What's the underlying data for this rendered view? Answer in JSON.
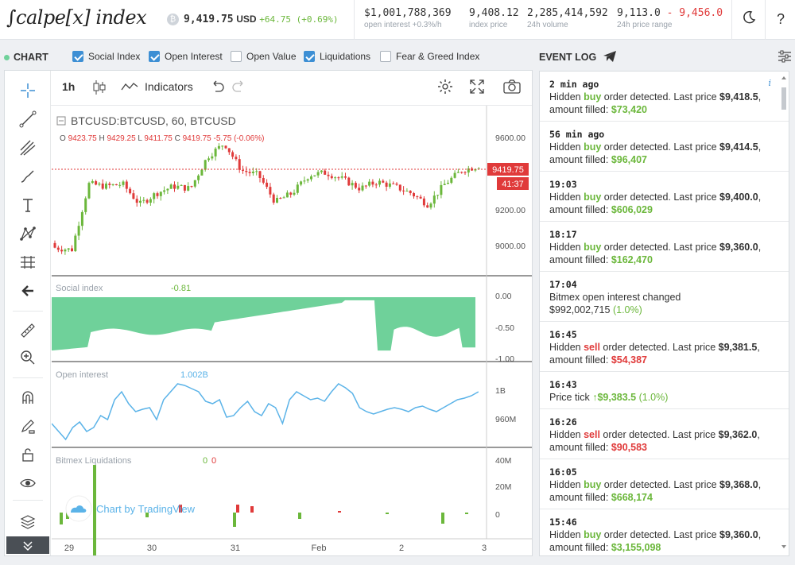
{
  "header": {
    "logo": "∫calpe[x] index",
    "btc_symbol": "₿",
    "price": "9,419.75",
    "currency": "USD",
    "change": "+64.75 (+0.69%)",
    "stats": [
      {
        "value": "$1,001,788,369",
        "label": "open interest",
        "sub": "+0.3%/h"
      },
      {
        "value": "9,408.12",
        "label": "index price"
      },
      {
        "value": "2,285,414,592",
        "label": "24h volume"
      },
      {
        "value_low": "9,113.0",
        "value_sep": " - ",
        "value_high": "9,456.0",
        "label": "24h price range"
      }
    ],
    "theme_icon": "moon-icon",
    "help_label": "?"
  },
  "chart_bar": {
    "title": "CHART",
    "toggles": [
      {
        "label": "Social Index",
        "checked": true
      },
      {
        "label": "Open Interest",
        "checked": true
      },
      {
        "label": "Open Value",
        "checked": false
      },
      {
        "label": "Liquidations",
        "checked": true
      },
      {
        "label": "Fear & Greed Index",
        "checked": false
      }
    ]
  },
  "chart_toolbar": {
    "interval": "1h",
    "indicators_label": "Indicators"
  },
  "chart": {
    "symbol": "BTCUSD:BTCUSD, 60, BTCUSD",
    "ohlc": {
      "o": "9423.75",
      "h": "9429.25",
      "l": "9411.75",
      "c": "9419.75",
      "chg": "-5.75 (-0.06%)"
    },
    "last_price_tag": "9419.75",
    "countdown_tag": "41:37",
    "price_ticks": [
      "9600.00",
      "9400.00",
      "9200.00",
      "9000.00"
    ],
    "social_label": "Social index",
    "social_value": "-0.81",
    "social_ticks": [
      "0.00",
      "-0.50",
      "-1.00"
    ],
    "oi_label": "Open interest",
    "oi_value": "1.002B",
    "oi_ticks": [
      "1B",
      "960M"
    ],
    "liq_label": "Bitmex Liquidations",
    "liq_values": [
      "0",
      "0"
    ],
    "liq_ticks": [
      "40M",
      "20M",
      "0"
    ],
    "x_ticks": [
      "29",
      "30",
      "31",
      "Feb",
      "2",
      "3"
    ],
    "watermark": "Chart by TradingView",
    "colors": {
      "up": "#6bb73b",
      "down": "#e03a3a",
      "social": "#6fd19a",
      "oi": "#5bb3e8"
    }
  },
  "chart_data": {
    "type": "candlestick",
    "x": [
      "29",
      "30",
      "31",
      "Feb",
      "2",
      "3"
    ],
    "close_approx": [
      9060,
      9050,
      9340,
      9330,
      9340,
      9250,
      9300,
      9330,
      9320,
      9460,
      9520,
      9400,
      9380,
      9260,
      9300,
      9380,
      9390,
      9360,
      9320,
      9350,
      9330,
      9300,
      9250,
      9340,
      9400,
      9420
    ],
    "last_price": 9419.75,
    "ylim": [
      8950,
      9650
    ]
  },
  "event_log": {
    "title": "EVENT LOG",
    "events": [
      {
        "time": "2 min ago",
        "pre": "Hidden ",
        "side": "buy",
        "mid": " order detected. Last price ",
        "price": "$9,418.5",
        "post": ", amount filled: ",
        "amount": "$73,420"
      },
      {
        "time": "56 min ago",
        "pre": "Hidden ",
        "side": "buy",
        "mid": " order detected. Last price ",
        "price": "$9,414.5",
        "post": ", amount filled: ",
        "amount": "$96,407"
      },
      {
        "time": "19:03",
        "pre": "Hidden ",
        "side": "buy",
        "mid": " order detected. Last price ",
        "price": "$9,400.0",
        "post": ", amount filled: ",
        "amount": "$606,029"
      },
      {
        "time": "18:17",
        "pre": "Hidden ",
        "side": "buy",
        "mid": " order detected. Last price ",
        "price": "$9,360.0",
        "post": ", amount filled: ",
        "amount": "$162,470"
      },
      {
        "time": "17:04",
        "text1": "Bitmex open interest changed",
        "text2": "$992,002,715",
        "text3": "(1.0%)"
      },
      {
        "time": "16:45",
        "pre": "Hidden ",
        "side": "sell",
        "mid": " order detected. Last price ",
        "price": "$9,381.5",
        "post": ", amount filled: ",
        "amount": "$54,387"
      },
      {
        "time": "16:43",
        "tick_pre": "Price tick ",
        "tick_arrow": "↑",
        "tick_price": "$9,383.5",
        "tick_pct": "(1.0%)"
      },
      {
        "time": "16:26",
        "pre": "Hidden ",
        "side": "sell",
        "mid": " order detected. Last price ",
        "price": "$9,362.0",
        "post": ", amount filled: ",
        "amount": "$90,583"
      },
      {
        "time": "16:05",
        "pre": "Hidden ",
        "side": "buy",
        "mid": " order detected. Last price ",
        "price": "$9,368.0",
        "post": ", amount filled: ",
        "amount": "$668,174"
      },
      {
        "time": "15:46",
        "pre": "Hidden ",
        "side": "buy",
        "mid": " order detected. Last price ",
        "price": "$9,360.0",
        "post": ", amount filled: ",
        "amount": "$3,155,098"
      }
    ]
  }
}
